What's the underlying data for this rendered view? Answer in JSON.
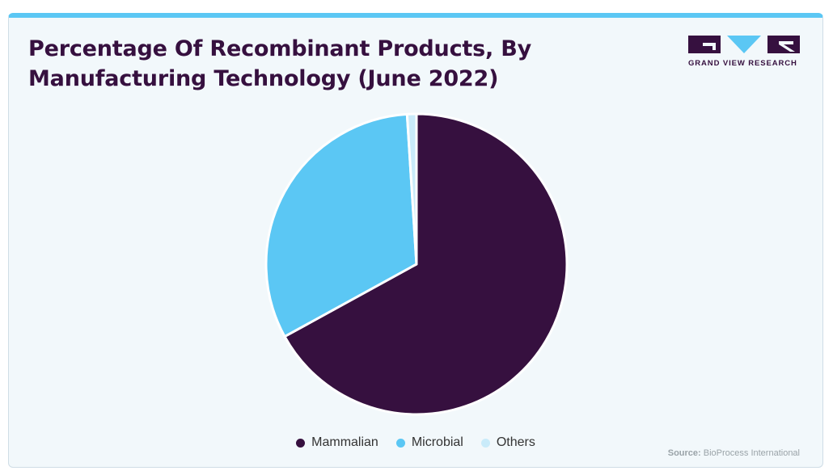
{
  "title_line1": "Percentage Of Recombinant Products, By",
  "title_line2": "Manufacturing Technology (June 2022)",
  "logo": {
    "text": "GRAND VIEW RESEARCH"
  },
  "source": {
    "label": "Source:",
    "text": "BioProcess International"
  },
  "colors": {
    "mammalian": "#36103f",
    "microbial": "#5bc7f4",
    "others": "#c9ebfa",
    "accent": "#5bc7f4"
  },
  "chart_data": {
    "type": "pie",
    "title": "Percentage Of Recombinant Products, By Manufacturing Technology (June 2022)",
    "legend_position": "bottom",
    "slices": [
      {
        "label": "Mammalian",
        "value": 67.0,
        "color": "#36103f"
      },
      {
        "label": "Microbial",
        "value": 32.0,
        "color": "#5bc7f4"
      },
      {
        "label": "Others",
        "value": 1.0,
        "color": "#c9ebfa"
      }
    ]
  }
}
